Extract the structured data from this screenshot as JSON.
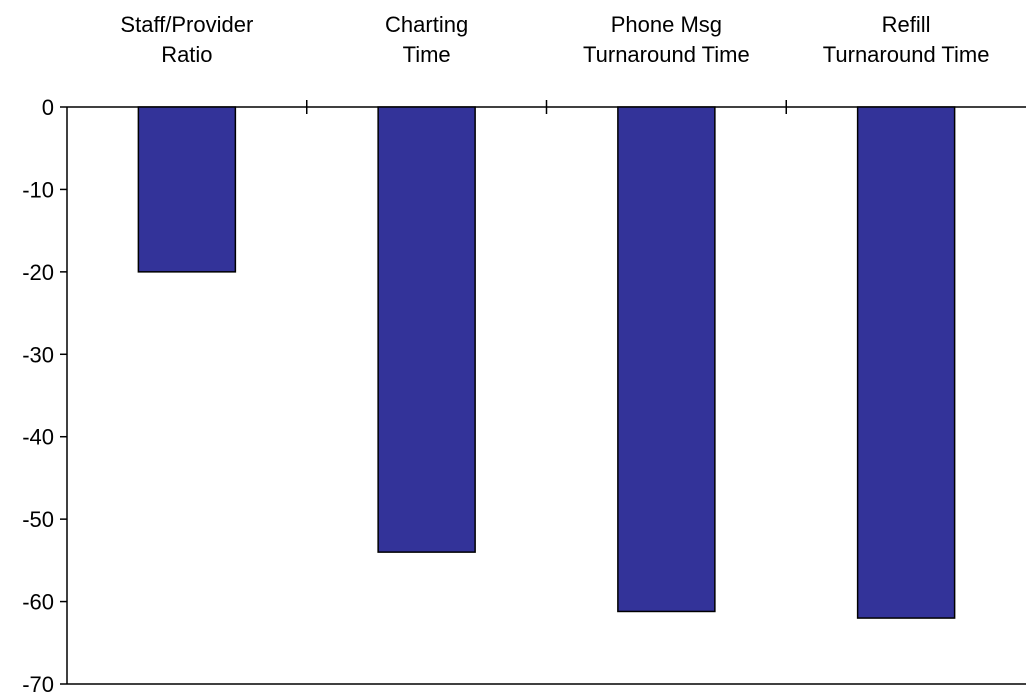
{
  "chart_data": {
    "type": "bar",
    "orientation": "vertical",
    "categories": [
      [
        "Staff/Provider",
        "Ratio"
      ],
      [
        "Charting",
        "Time"
      ],
      [
        "Phone Msg",
        "Turnaround Time"
      ],
      [
        "Refill",
        "Turnaround Time"
      ]
    ],
    "values": [
      -20,
      -54,
      -61.2,
      -62
    ],
    "ylim": [
      -70,
      0
    ],
    "yticks": [
      0,
      -10,
      -20,
      -30,
      -40,
      -50,
      -60,
      -70
    ],
    "category_label_position": "top",
    "grid": false,
    "legend": "none",
    "bar_color": "#333399"
  }
}
